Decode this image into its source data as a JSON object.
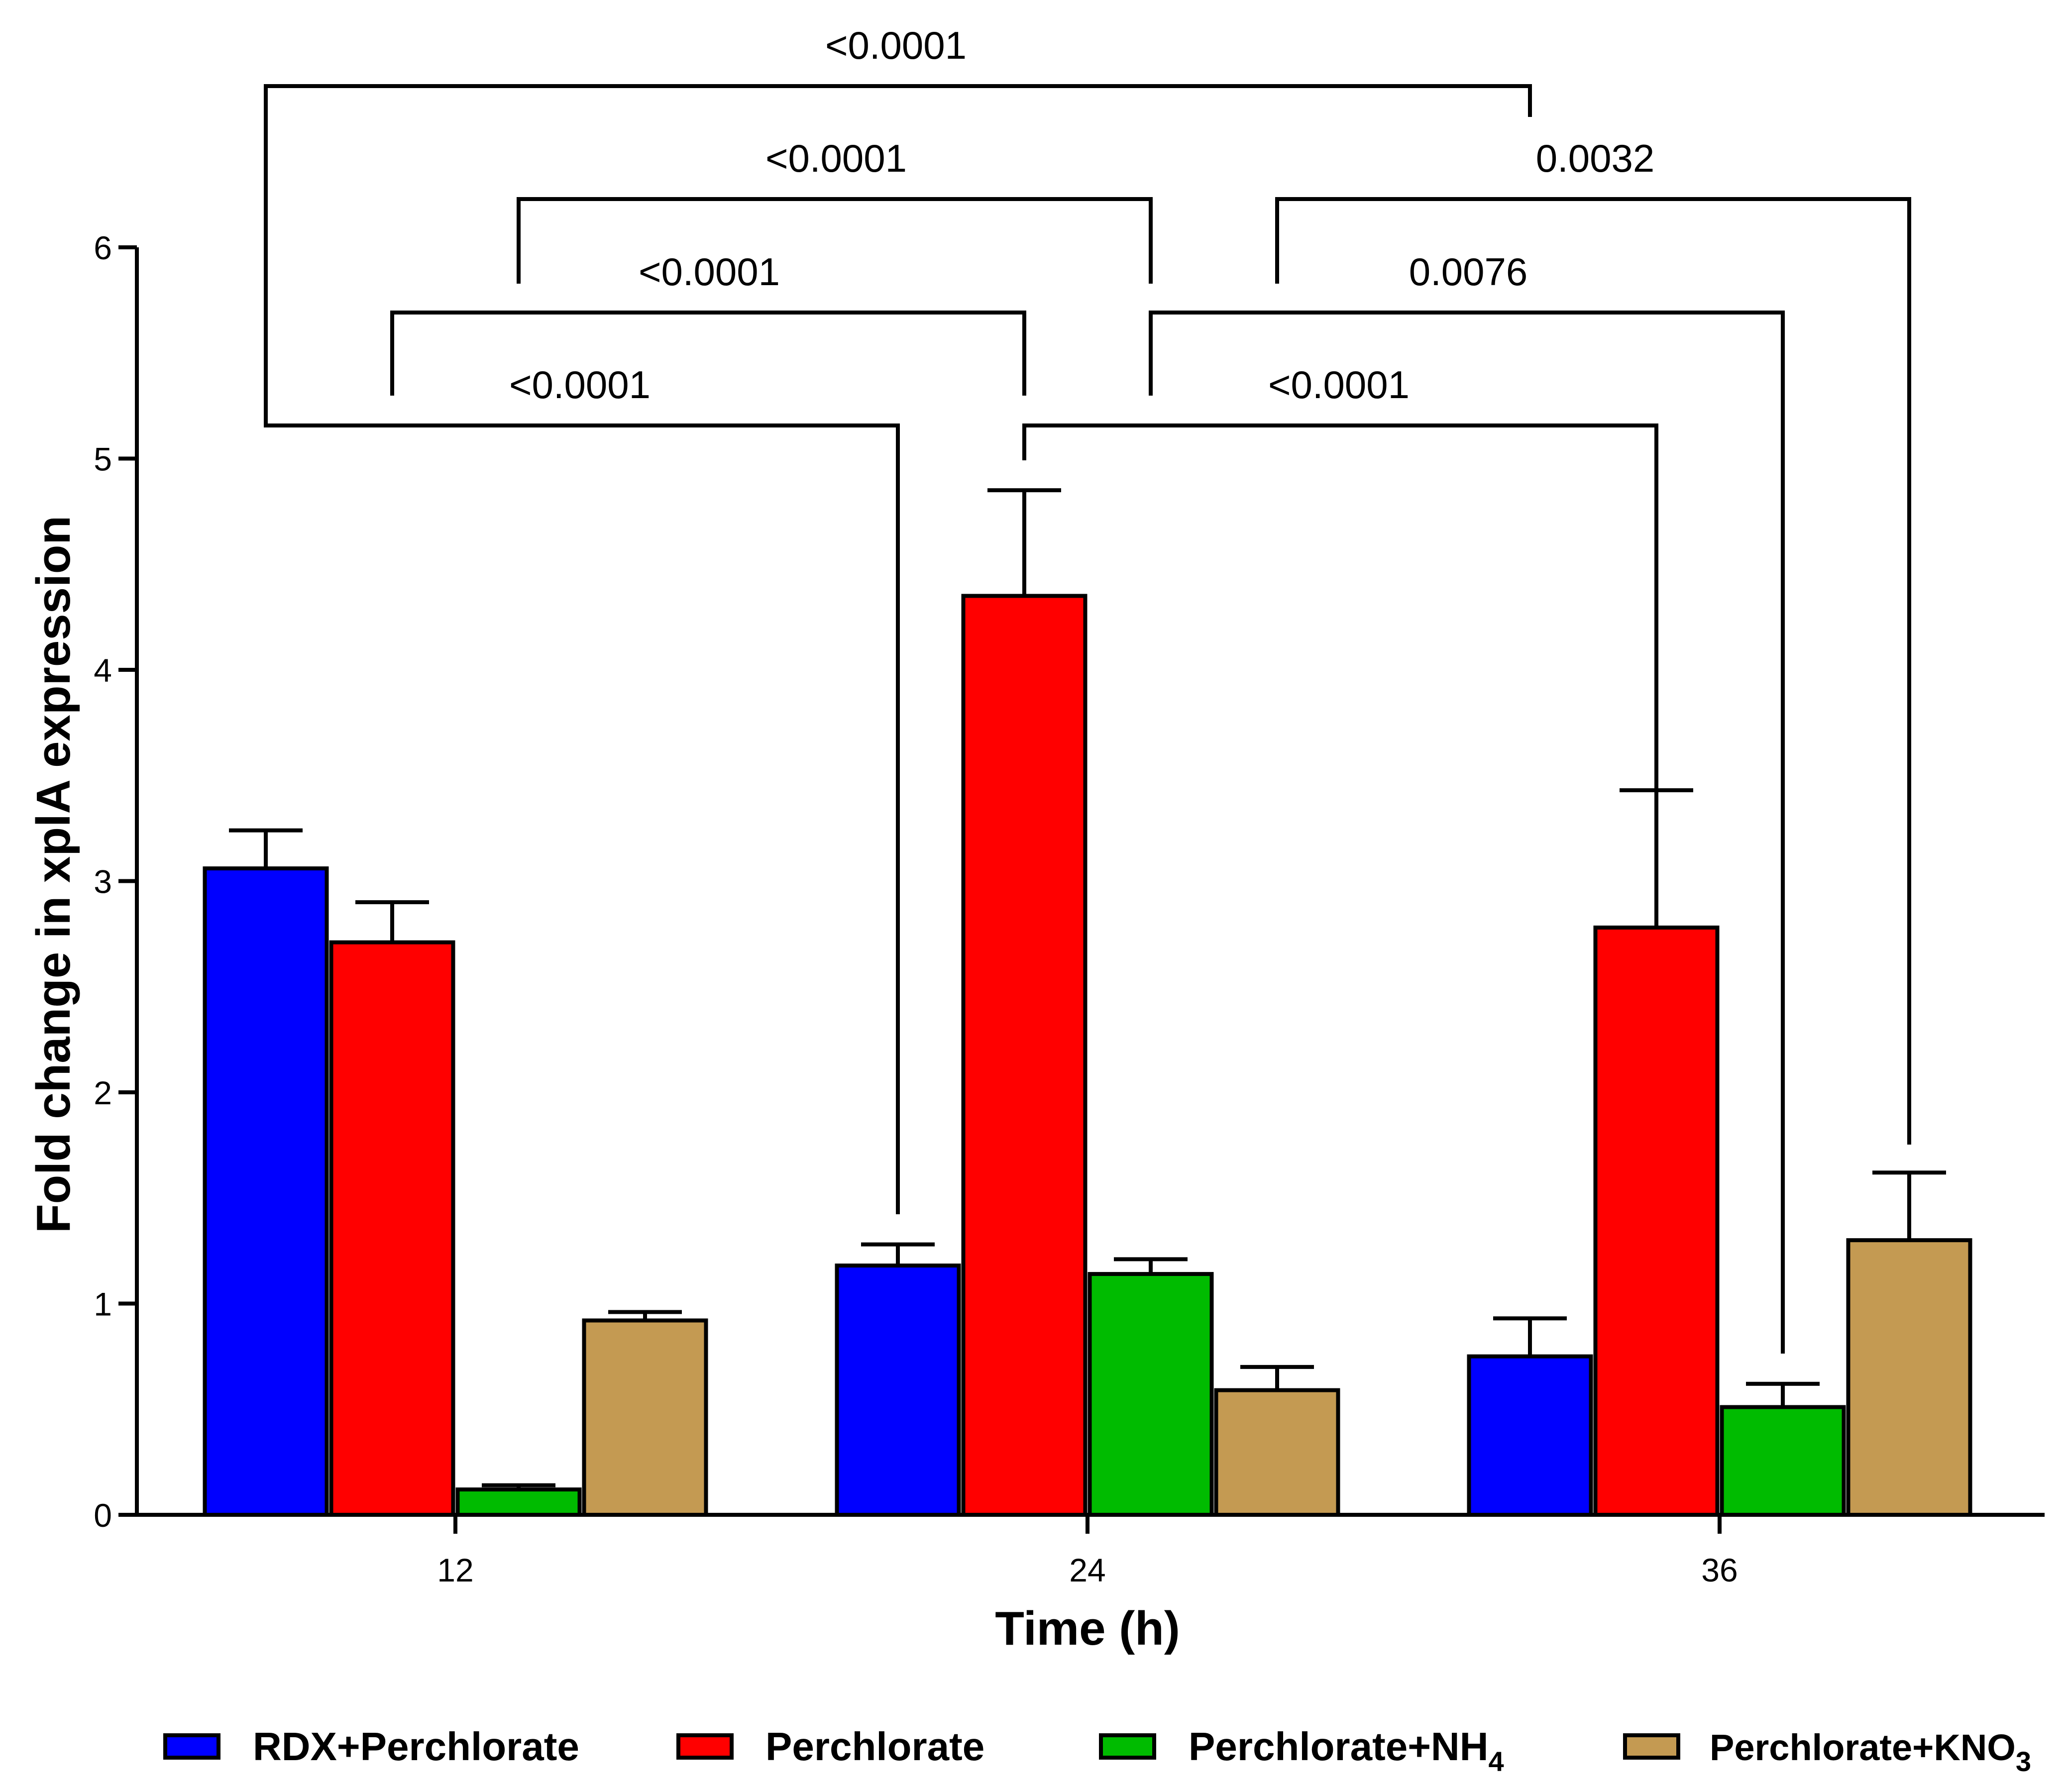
{
  "chart_data": {
    "type": "bar",
    "title": "",
    "xlabel": "Time (h)",
    "ylabel": "Fold change in xplA expression",
    "ylim": [
      0,
      6
    ],
    "yticks": [
      0,
      1,
      2,
      3,
      4,
      5,
      6
    ],
    "categories": [
      "12",
      "24",
      "36"
    ],
    "legend_position": "bottom",
    "series": [
      {
        "name": "RDX+Perchlorate",
        "label_main": "RDX+Perchlorate",
        "label_sub": "",
        "color": "#0000ff",
        "values": [
          3.06,
          1.18,
          0.75
        ],
        "errors": [
          0.18,
          0.1,
          0.18
        ]
      },
      {
        "name": "Perchlorate",
        "label_main": "Perchlorate",
        "label_sub": "",
        "color": "#ff0000",
        "values": [
          2.71,
          4.35,
          2.78
        ],
        "errors": [
          0.19,
          0.5,
          0.65
        ]
      },
      {
        "name": "Perchlorate+NH4",
        "label_main": "Perchlorate+NH",
        "label_sub": "4",
        "color": "#00bb00",
        "values": [
          0.12,
          1.14,
          0.51
        ],
        "errors": [
          0.02,
          0.07,
          0.11
        ]
      },
      {
        "name": "Perchlorate+KNO3",
        "label_main": "Perchlorate+KNO",
        "label_sub": "3",
        "color": "#c49a52",
        "values": [
          0.92,
          0.59,
          1.3
        ],
        "errors": [
          0.04,
          0.11,
          0.32
        ]
      }
    ],
    "comparisons": [
      {
        "label": "<0.0001",
        "from": {
          "series": 0,
          "category": 0
        },
        "to": {
          "series": 0,
          "category": 1
        }
      },
      {
        "label": "<0.0001",
        "from": {
          "series": 1,
          "category": 0
        },
        "to": {
          "series": 1,
          "category": 1
        }
      },
      {
        "label": "<0.0001",
        "from": {
          "series": 2,
          "category": 0
        },
        "to": {
          "series": 2,
          "category": 1
        }
      },
      {
        "label": "<0.0001",
        "from": {
          "series": 0,
          "category": 0
        },
        "to": {
          "series": 0,
          "category": 2
        }
      },
      {
        "label": "<0.0001",
        "from": {
          "series": 1,
          "category": 1
        },
        "to": {
          "series": 1,
          "category": 2
        }
      },
      {
        "label": "0.0076",
        "from": {
          "series": 2,
          "category": 1
        },
        "to": {
          "series": 2,
          "category": 2
        }
      },
      {
        "label": "0.0032",
        "from": {
          "series": 3,
          "category": 1
        },
        "to": {
          "series": 3,
          "category": 2
        }
      }
    ]
  }
}
